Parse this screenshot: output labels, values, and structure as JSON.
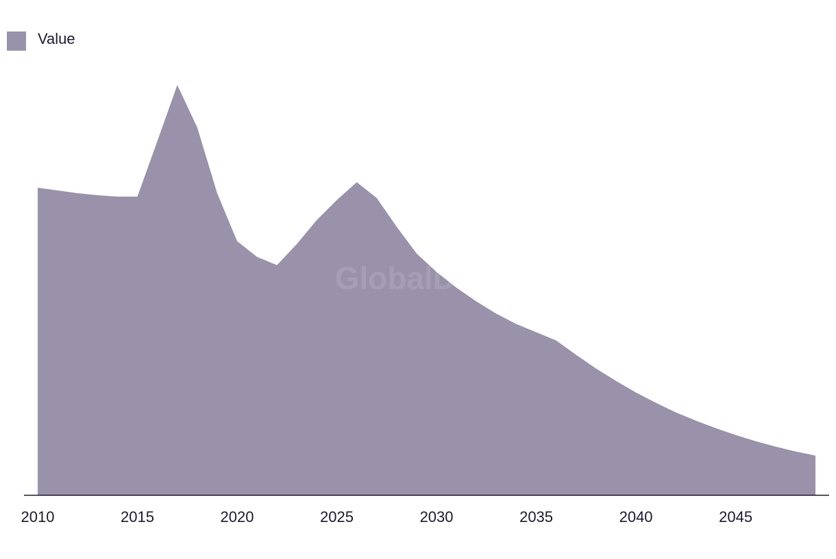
{
  "chart_data": {
    "type": "area",
    "watermark": "GlobalData",
    "x": [
      2010,
      2011,
      2012,
      2013,
      2014,
      2015,
      2016,
      2017,
      2018,
      2019,
      2020,
      2021,
      2022,
      2023,
      2024,
      2025,
      2026,
      2027,
      2028,
      2029,
      2030,
      2031,
      2032,
      2033,
      2034,
      2035,
      2036,
      2037,
      2038,
      2039,
      2040,
      2041,
      2042,
      2043,
      2044,
      2045,
      2046,
      2047,
      2048,
      2049
    ],
    "series": [
      {
        "name": "Value",
        "color": "#9a91aa",
        "values": [
          449,
          445,
          441,
          438,
          436,
          436,
          517,
          599,
          537,
          441,
          371,
          348,
          336,
          367,
          402,
          431,
          457,
          434,
          392,
          353,
          326,
          303,
          283,
          265,
          250,
          238,
          226,
          205,
          185,
          167,
          150,
          135,
          121,
          109,
          98,
          88,
          79,
          71,
          64,
          58
        ]
      }
    ],
    "xlim": [
      2010,
      2049
    ],
    "xticks": [
      2010,
      2015,
      2020,
      2025,
      2030,
      2035,
      2040,
      2045
    ],
    "ylim": [
      0,
      650
    ],
    "legend": "top-left"
  }
}
